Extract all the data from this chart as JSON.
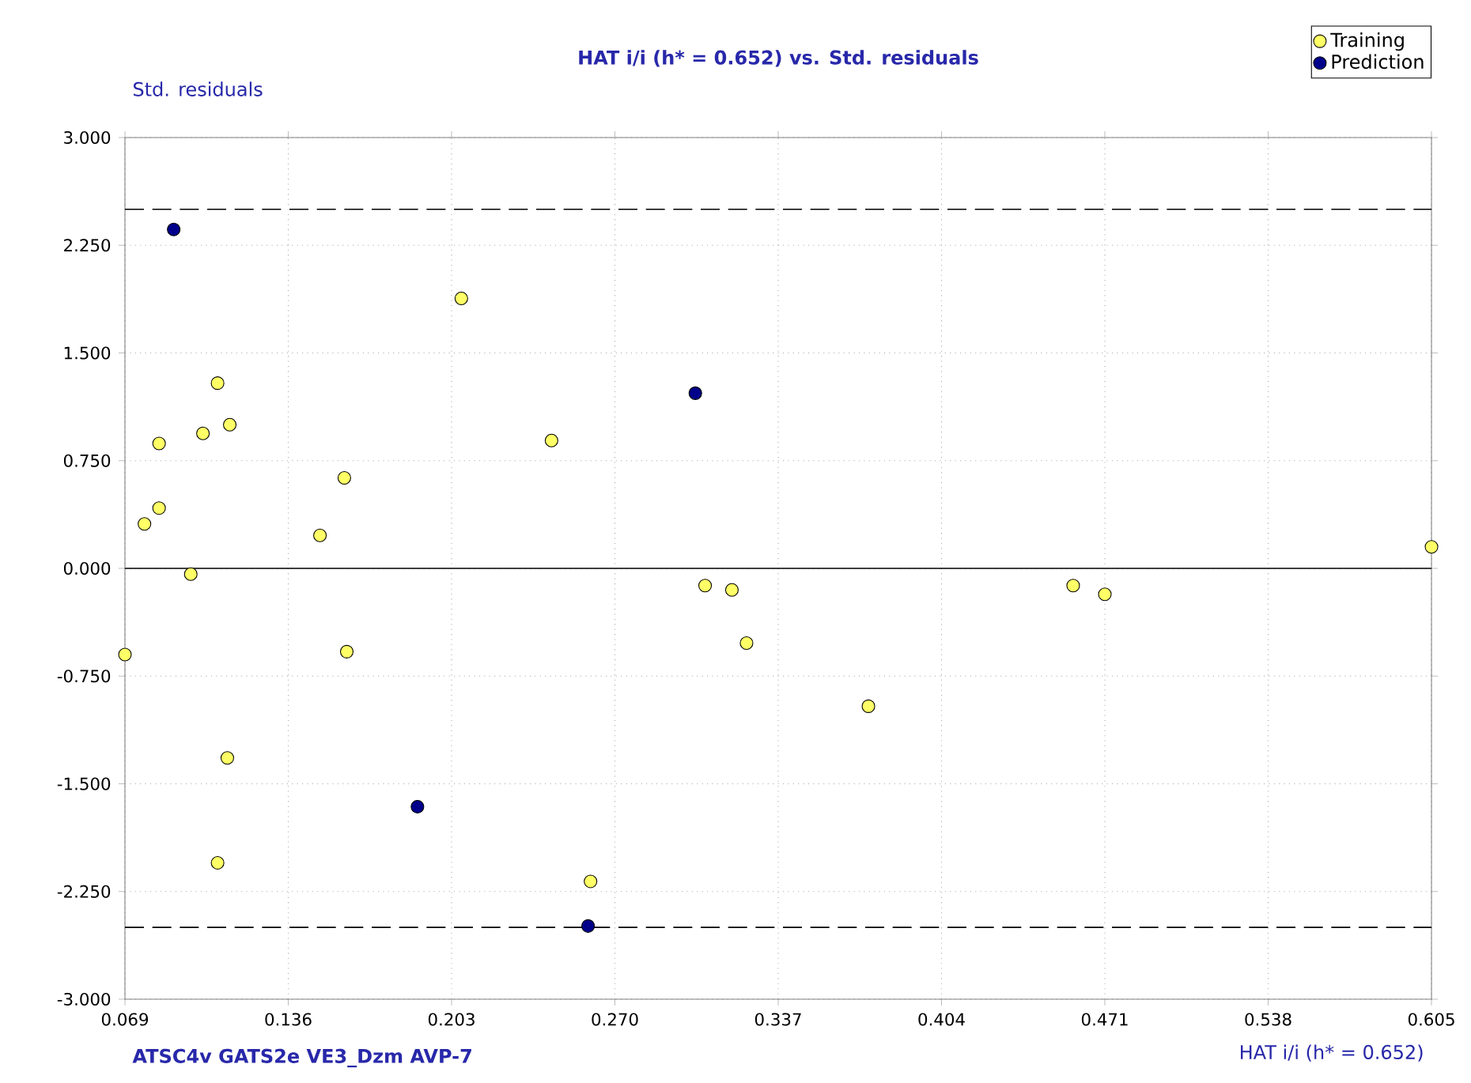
{
  "chart_data": {
    "type": "scatter",
    "title": "HAT i/i (h* = 0.652) vs. Std. residuals",
    "xlabel": "HAT i/i (h* = 0.652)",
    "ylabel": "Std. residuals",
    "annotations": [
      "ATSC4v  GATS2e  VE3_Dzm  AVP-7"
    ],
    "xlim": [
      0.069,
      0.605
    ],
    "ylim": [
      -3,
      3
    ],
    "xticks": [
      {
        "value": 0.069,
        "label": "0.069"
      },
      {
        "value": 0.136,
        "label": "0.136"
      },
      {
        "value": 0.203,
        "label": "0.203"
      },
      {
        "value": 0.27,
        "label": "0.270"
      },
      {
        "value": 0.337,
        "label": "0.337"
      },
      {
        "value": 0.404,
        "label": "0.404"
      },
      {
        "value": 0.471,
        "label": "0.471"
      },
      {
        "value": 0.538,
        "label": "0.538"
      },
      {
        "value": 0.605,
        "label": "0.605"
      }
    ],
    "yticks": [
      {
        "value": -3,
        "label": "-3.000"
      },
      {
        "value": -2.25,
        "label": "-2.250"
      },
      {
        "value": -1.5,
        "label": "-1.500"
      },
      {
        "value": -0.75,
        "label": "-0.750"
      },
      {
        "value": 0,
        "label": "0.000"
      },
      {
        "value": 0.75,
        "label": "0.750"
      },
      {
        "value": 1.5,
        "label": "1.500"
      },
      {
        "value": 2.25,
        "label": "2.250"
      },
      {
        "value": 3,
        "label": "3.000"
      }
    ],
    "grid": true,
    "legend": "top right",
    "marker": "circle",
    "ref_lines": [
      {
        "axis": "y",
        "value": 2.5,
        "color": "#000000",
        "line_style": "dashed"
      },
      {
        "axis": "y",
        "value": -2.5,
        "color": "#000000",
        "line_style": "dashed"
      },
      {
        "axis": "y",
        "value": 0,
        "color": "#000000",
        "line_style": "solid"
      }
    ],
    "series": [
      {
        "name": "Training",
        "color": "#ffff66",
        "x": [
          0.069,
          0.077,
          0.083,
          0.083,
          0.096,
          0.101,
          0.107,
          0.107,
          0.111,
          0.112,
          0.149,
          0.159,
          0.16,
          0.207,
          0.244,
          0.26,
          0.307,
          0.318,
          0.324,
          0.374,
          0.458,
          0.471,
          0.605
        ],
        "values": [
          -0.6,
          0.31,
          0.42,
          0.87,
          -0.04,
          0.94,
          1.29,
          -2.05,
          -1.32,
          1.0,
          0.23,
          0.63,
          -0.58,
          1.88,
          0.89,
          -2.18,
          -0.12,
          -0.15,
          -0.52,
          -0.96,
          -0.12,
          -0.18,
          0.15
        ]
      },
      {
        "name": "Prediction",
        "color": "#00008b",
        "x": [
          0.089,
          0.189,
          0.259,
          0.303
        ],
        "values": [
          2.36,
          -1.66,
          -2.49,
          1.22
        ]
      }
    ]
  }
}
